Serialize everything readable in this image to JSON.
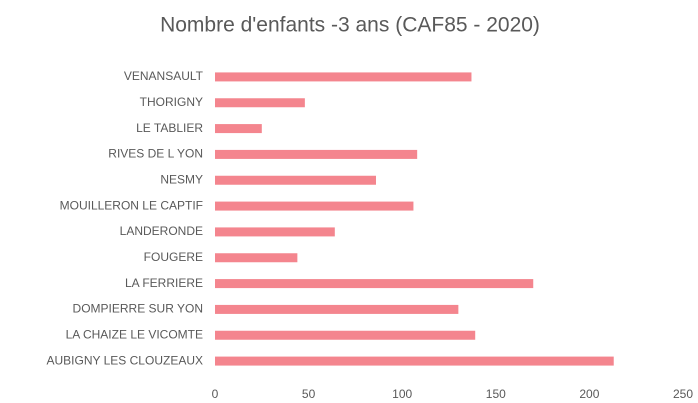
{
  "chart_data": {
    "type": "bar",
    "orientation": "horizontal",
    "title": "Nombre d'enfants -3 ans (CAF85 - 2020)",
    "categories": [
      "VENANSAULT",
      "THORIGNY",
      "LE TABLIER",
      "RIVES DE L YON",
      "NESMY",
      "MOUILLERON LE CAPTIF",
      "LANDERONDE",
      "FOUGERE",
      "LA FERRIERE",
      "DOMPIERRE SUR YON",
      "LA CHAIZE LE VICOMTE",
      "AUBIGNY LES CLOUZEAUX"
    ],
    "values": [
      137,
      48,
      25,
      108,
      86,
      106,
      64,
      44,
      170,
      130,
      139,
      213
    ],
    "color": "#f4858e",
    "xlim": [
      0,
      250
    ],
    "xticks": [
      0,
      50,
      100,
      150,
      200,
      250
    ],
    "grid": false
  }
}
